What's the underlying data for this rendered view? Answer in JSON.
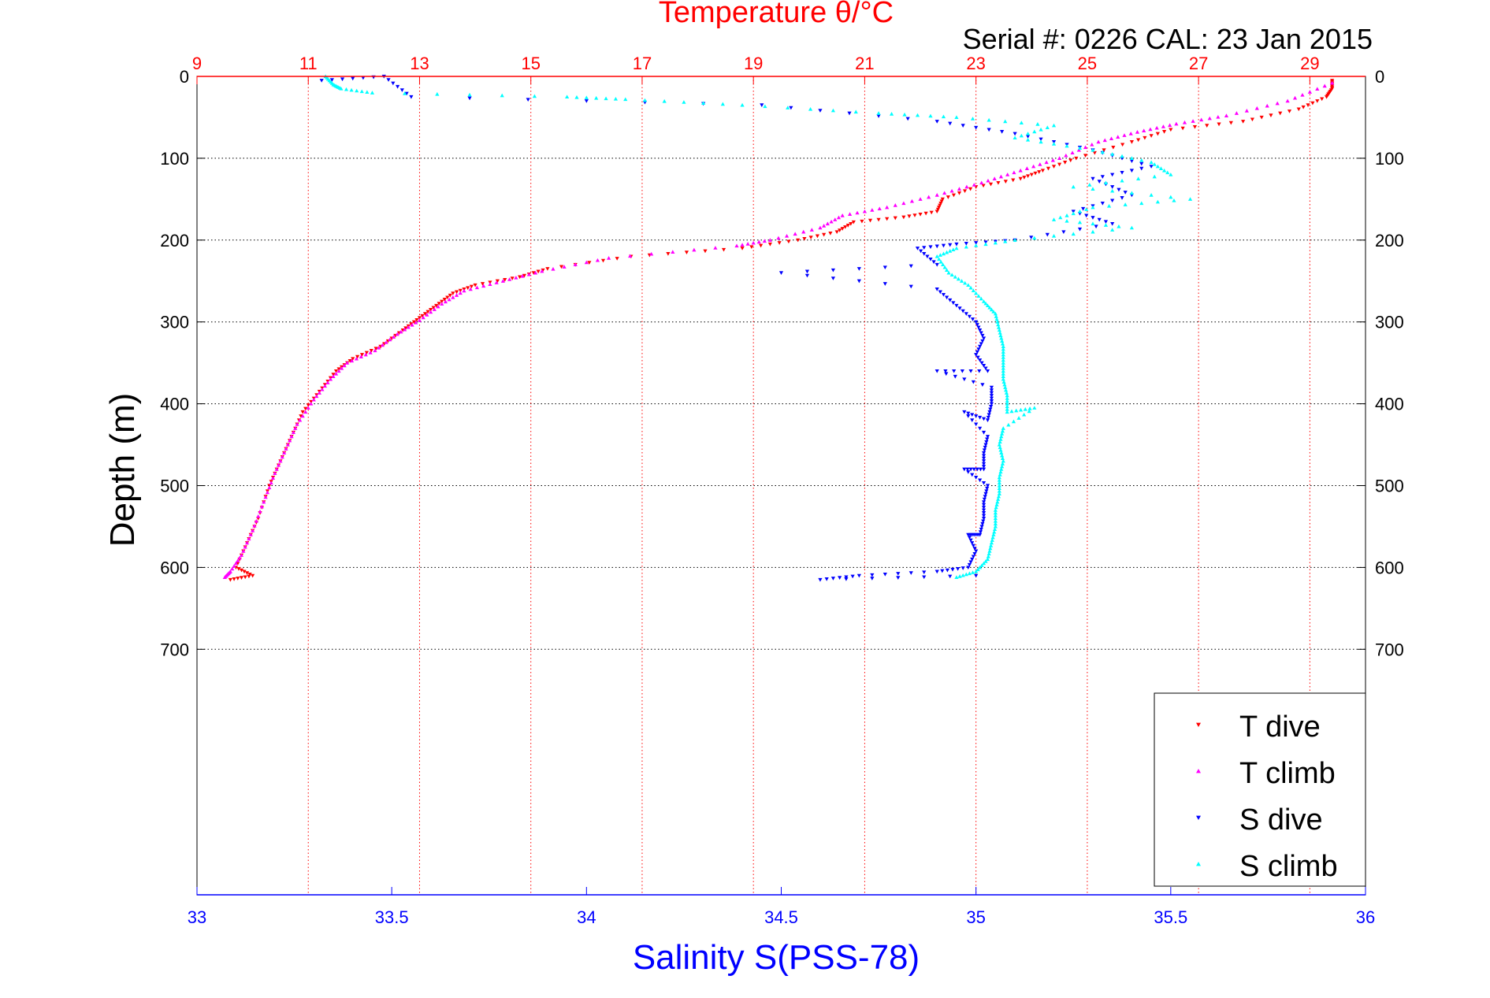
{
  "chart_data": {
    "type": "scatter",
    "title": "Temperature θ/°C",
    "subtitle": "Serial #: 0226  CAL: 23 Jan 2015",
    "xlabel": "Salinity S(PSS-78)",
    "ylabel": "Depth (m)",
    "x_top": {
      "label": "Temperature θ/°C",
      "range": [
        9,
        30
      ],
      "ticks": [
        9,
        11,
        13,
        15,
        17,
        19,
        21,
        23,
        25,
        27,
        29
      ],
      "color": "#ff0000"
    },
    "x_bottom": {
      "label": "Salinity S(PSS-78)",
      "range": [
        33,
        36
      ],
      "ticks": [
        33,
        33.5,
        34,
        34.5,
        35,
        35.5,
        36
      ],
      "color": "#0000ff"
    },
    "y": {
      "range": [
        0,
        1000
      ],
      "reversed": true,
      "ticks": [
        0,
        100,
        200,
        300,
        400,
        500,
        600,
        700
      ]
    },
    "grid": true,
    "legend_position": "bottom-right",
    "series": [
      {
        "name": "T dive",
        "axis": "top",
        "color": "#ff0000",
        "marker": "triangle-down",
        "points": [
          [
            29.4,
            5
          ],
          [
            29.4,
            15
          ],
          [
            29.3,
            25
          ],
          [
            28.8,
            40
          ],
          [
            27.8,
            55
          ],
          [
            26.5,
            65
          ],
          [
            25.8,
            80
          ],
          [
            24.8,
            100
          ],
          [
            24.2,
            115
          ],
          [
            23.8,
            125
          ],
          [
            23.0,
            135
          ],
          [
            22.4,
            150
          ],
          [
            22.3,
            165
          ],
          [
            21.7,
            172
          ],
          [
            20.8,
            178
          ],
          [
            20.5,
            190
          ],
          [
            19.8,
            200
          ],
          [
            18.8,
            210
          ],
          [
            16.8,
            220
          ],
          [
            15.3,
            235
          ],
          [
            14.8,
            245
          ],
          [
            14.0,
            255
          ],
          [
            13.6,
            265
          ],
          [
            13.3,
            280
          ],
          [
            13.0,
            295
          ],
          [
            12.7,
            310
          ],
          [
            12.3,
            330
          ],
          [
            11.8,
            345
          ],
          [
            11.5,
            360
          ],
          [
            11.2,
            385
          ],
          [
            10.9,
            410
          ],
          [
            10.7,
            440
          ],
          [
            10.5,
            470
          ],
          [
            10.3,
            500
          ],
          [
            10.1,
            540
          ],
          [
            9.9,
            570
          ],
          [
            9.7,
            600
          ],
          [
            10.0,
            610
          ],
          [
            9.6,
            615
          ]
        ]
      },
      {
        "name": "T climb",
        "axis": "top",
        "color": "#ff00ff",
        "marker": "triangle-up",
        "points": [
          [
            29.4,
            8
          ],
          [
            28.6,
            30
          ],
          [
            27.5,
            48
          ],
          [
            26.6,
            58
          ],
          [
            25.9,
            68
          ],
          [
            25.2,
            80
          ],
          [
            24.5,
            100
          ],
          [
            23.8,
            115
          ],
          [
            23.1,
            130
          ],
          [
            22.3,
            145
          ],
          [
            21.4,
            160
          ],
          [
            20.6,
            170
          ],
          [
            20.2,
            185
          ],
          [
            19.3,
            200
          ],
          [
            18.7,
            207
          ],
          [
            16.4,
            222
          ],
          [
            15.2,
            238
          ],
          [
            14.5,
            250
          ],
          [
            13.8,
            262
          ],
          [
            13.4,
            278
          ],
          [
            13.0,
            298
          ],
          [
            12.6,
            315
          ],
          [
            12.2,
            335
          ],
          [
            11.7,
            350
          ],
          [
            11.4,
            370
          ],
          [
            11.1,
            395
          ],
          [
            10.8,
            425
          ],
          [
            10.6,
            455
          ],
          [
            10.4,
            485
          ],
          [
            10.2,
            520
          ],
          [
            10.0,
            555
          ],
          [
            9.8,
            585
          ],
          [
            9.6,
            605
          ],
          [
            9.5,
            612
          ]
        ]
      },
      {
        "name": "S dive",
        "axis": "bottom",
        "color": "#0000ff",
        "marker": "triangle-down",
        "points": [
          [
            33.32,
            5
          ],
          [
            33.48,
            0
          ],
          [
            33.55,
            25
          ],
          [
            34.45,
            35
          ],
          [
            34.9,
            55
          ],
          [
            35.1,
            70
          ],
          [
            35.3,
            90
          ],
          [
            35.45,
            110
          ],
          [
            35.3,
            125
          ],
          [
            35.4,
            145
          ],
          [
            35.25,
            165
          ],
          [
            35.35,
            180
          ],
          [
            35.1,
            200
          ],
          [
            34.95,
            205
          ],
          [
            34.85,
            210
          ],
          [
            34.9,
            230
          ],
          [
            34.5,
            240
          ],
          [
            34.9,
            260
          ],
          [
            34.95,
            280
          ],
          [
            35.0,
            300
          ],
          [
            35.02,
            320
          ],
          [
            35.0,
            340
          ],
          [
            35.03,
            360
          ],
          [
            34.9,
            360
          ],
          [
            35.04,
            380
          ],
          [
            35.04,
            400
          ],
          [
            35.03,
            420
          ],
          [
            34.97,
            410
          ],
          [
            35.03,
            440
          ],
          [
            35.02,
            460
          ],
          [
            35.02,
            480
          ],
          [
            34.97,
            480
          ],
          [
            35.03,
            500
          ],
          [
            35.02,
            520
          ],
          [
            35.02,
            540
          ],
          [
            35.01,
            560
          ],
          [
            34.98,
            560
          ],
          [
            35.0,
            580
          ],
          [
            34.98,
            600
          ],
          [
            34.9,
            605
          ],
          [
            34.7,
            610
          ],
          [
            34.6,
            615
          ],
          [
            35.0,
            610
          ]
        ]
      },
      {
        "name": "S climb",
        "axis": "bottom",
        "color": "#00ffff",
        "marker": "triangle-up",
        "points": [
          [
            33.33,
            0
          ],
          [
            33.35,
            10
          ],
          [
            33.37,
            15
          ],
          [
            33.45,
            20
          ],
          [
            33.95,
            25
          ],
          [
            34.1,
            28
          ],
          [
            34.4,
            35
          ],
          [
            34.75,
            45
          ],
          [
            34.95,
            50
          ],
          [
            35.2,
            60
          ],
          [
            35.1,
            75
          ],
          [
            35.3,
            90
          ],
          [
            35.45,
            105
          ],
          [
            35.5,
            120
          ],
          [
            35.25,
            135
          ],
          [
            35.55,
            150
          ],
          [
            35.3,
            160
          ],
          [
            35.2,
            175
          ],
          [
            35.4,
            185
          ],
          [
            35.1,
            200
          ],
          [
            34.95,
            210
          ],
          [
            34.9,
            220
          ],
          [
            34.93,
            240
          ],
          [
            34.98,
            255
          ],
          [
            35.02,
            275
          ],
          [
            35.05,
            290
          ],
          [
            35.06,
            310
          ],
          [
            35.07,
            330
          ],
          [
            35.07,
            350
          ],
          [
            35.07,
            370
          ],
          [
            35.08,
            390
          ],
          [
            35.08,
            410
          ],
          [
            35.15,
            405
          ],
          [
            35.07,
            430
          ],
          [
            35.06,
            450
          ],
          [
            35.07,
            470
          ],
          [
            35.06,
            490
          ],
          [
            35.06,
            510
          ],
          [
            35.05,
            530
          ],
          [
            35.05,
            550
          ],
          [
            35.04,
            570
          ],
          [
            35.03,
            590
          ],
          [
            35.0,
            605
          ],
          [
            34.95,
            612
          ]
        ]
      }
    ]
  }
}
